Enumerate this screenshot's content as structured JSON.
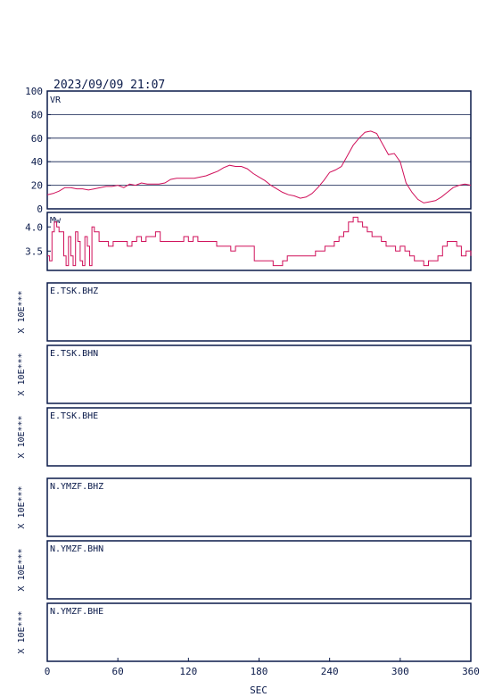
{
  "header": {
    "datetime": "2023/09/09 21:07"
  },
  "colors": {
    "frame": "#0a1a4a",
    "curve": "#d0105a",
    "grid": "#0a1a4a"
  },
  "chart_data": [
    {
      "type": "line",
      "id": "vr",
      "label": "VR",
      "xlim": [
        0,
        360
      ],
      "ylim": [
        0,
        100
      ],
      "yticks": [
        "0",
        "20",
        "40",
        "60",
        "80",
        "100"
      ],
      "grid": true,
      "x": [
        0,
        5,
        10,
        15,
        20,
        25,
        30,
        35,
        40,
        45,
        50,
        55,
        60,
        65,
        70,
        75,
        80,
        85,
        90,
        95,
        100,
        105,
        110,
        115,
        120,
        125,
        130,
        135,
        140,
        145,
        150,
        155,
        160,
        165,
        170,
        175,
        180,
        185,
        190,
        195,
        200,
        205,
        210,
        215,
        220,
        225,
        230,
        235,
        240,
        245,
        250,
        255,
        260,
        265,
        270,
        275,
        280,
        285,
        290,
        295,
        300,
        305,
        310,
        315,
        320,
        325,
        330,
        335,
        340,
        345,
        350,
        355,
        360
      ],
      "values": [
        12,
        13,
        15,
        18,
        18,
        17,
        17,
        16,
        17,
        18,
        19,
        19,
        20,
        18,
        21,
        20,
        22,
        21,
        21,
        21,
        22,
        25,
        26,
        26,
        26,
        26,
        27,
        28,
        30,
        32,
        35,
        37,
        36,
        36,
        34,
        30,
        27,
        24,
        20,
        17,
        14,
        12,
        11,
        9,
        10,
        13,
        18,
        24,
        31,
        33,
        36,
        45,
        54,
        60,
        65,
        66,
        64,
        55,
        46,
        47,
        40,
        22,
        14,
        8,
        5,
        6,
        7,
        10,
        14,
        18,
        20,
        21,
        20
      ]
    },
    {
      "type": "line",
      "id": "mw",
      "label": "Mw",
      "xlim": [
        0,
        360
      ],
      "ylim": [
        3.1,
        4.3
      ],
      "yticks": [
        "3.5",
        "4.0"
      ],
      "grid": false,
      "x": [
        0,
        2,
        4,
        6,
        8,
        10,
        12,
        14,
        16,
        18,
        20,
        22,
        24,
        26,
        28,
        30,
        32,
        34,
        36,
        38,
        40,
        44,
        48,
        52,
        56,
        60,
        64,
        68,
        72,
        76,
        80,
        84,
        88,
        92,
        96,
        100,
        104,
        108,
        112,
        116,
        120,
        124,
        128,
        132,
        136,
        140,
        144,
        148,
        152,
        156,
        160,
        164,
        168,
        172,
        176,
        180,
        184,
        188,
        192,
        196,
        200,
        204,
        208,
        212,
        216,
        220,
        224,
        228,
        232,
        236,
        240,
        244,
        248,
        252,
        256,
        260,
        264,
        268,
        272,
        276,
        280,
        284,
        288,
        292,
        296,
        300,
        304,
        308,
        312,
        316,
        320,
        324,
        328,
        332,
        336,
        340,
        344,
        348,
        352,
        356,
        360
      ],
      "values": [
        3.4,
        3.3,
        3.9,
        4.1,
        4.0,
        3.9,
        3.9,
        3.4,
        3.2,
        3.8,
        3.4,
        3.2,
        3.9,
        3.7,
        3.3,
        3.2,
        3.8,
        3.6,
        3.2,
        4.0,
        3.9,
        3.7,
        3.7,
        3.6,
        3.7,
        3.7,
        3.7,
        3.6,
        3.7,
        3.8,
        3.7,
        3.8,
        3.8,
        3.9,
        3.7,
        3.7,
        3.7,
        3.7,
        3.7,
        3.8,
        3.7,
        3.8,
        3.7,
        3.7,
        3.7,
        3.7,
        3.6,
        3.6,
        3.6,
        3.5,
        3.6,
        3.6,
        3.6,
        3.6,
        3.3,
        3.3,
        3.3,
        3.3,
        3.2,
        3.2,
        3.3,
        3.4,
        3.4,
        3.4,
        3.4,
        3.4,
        3.4,
        3.5,
        3.5,
        3.6,
        3.6,
        3.7,
        3.8,
        3.9,
        4.1,
        4.2,
        4.1,
        4.0,
        3.9,
        3.8,
        3.8,
        3.7,
        3.6,
        3.6,
        3.5,
        3.6,
        3.5,
        3.4,
        3.3,
        3.3,
        3.2,
        3.3,
        3.3,
        3.4,
        3.6,
        3.7,
        3.7,
        3.6,
        3.4,
        3.5,
        3.4
      ]
    }
  ],
  "axis_y_label": "X 10E***",
  "stations": [
    {
      "name": "E.TSK.BHZ"
    },
    {
      "name": "E.TSK.BHN"
    },
    {
      "name": "E.TSK.BHE"
    },
    {
      "name": "N.YMZF.BHZ"
    },
    {
      "name": "N.YMZF.BHN"
    },
    {
      "name": "N.YMZF.BHE"
    }
  ],
  "x_axis": {
    "label": "SEC",
    "ticks": [
      "0",
      "60",
      "120",
      "180",
      "240",
      "300",
      "360"
    ]
  }
}
